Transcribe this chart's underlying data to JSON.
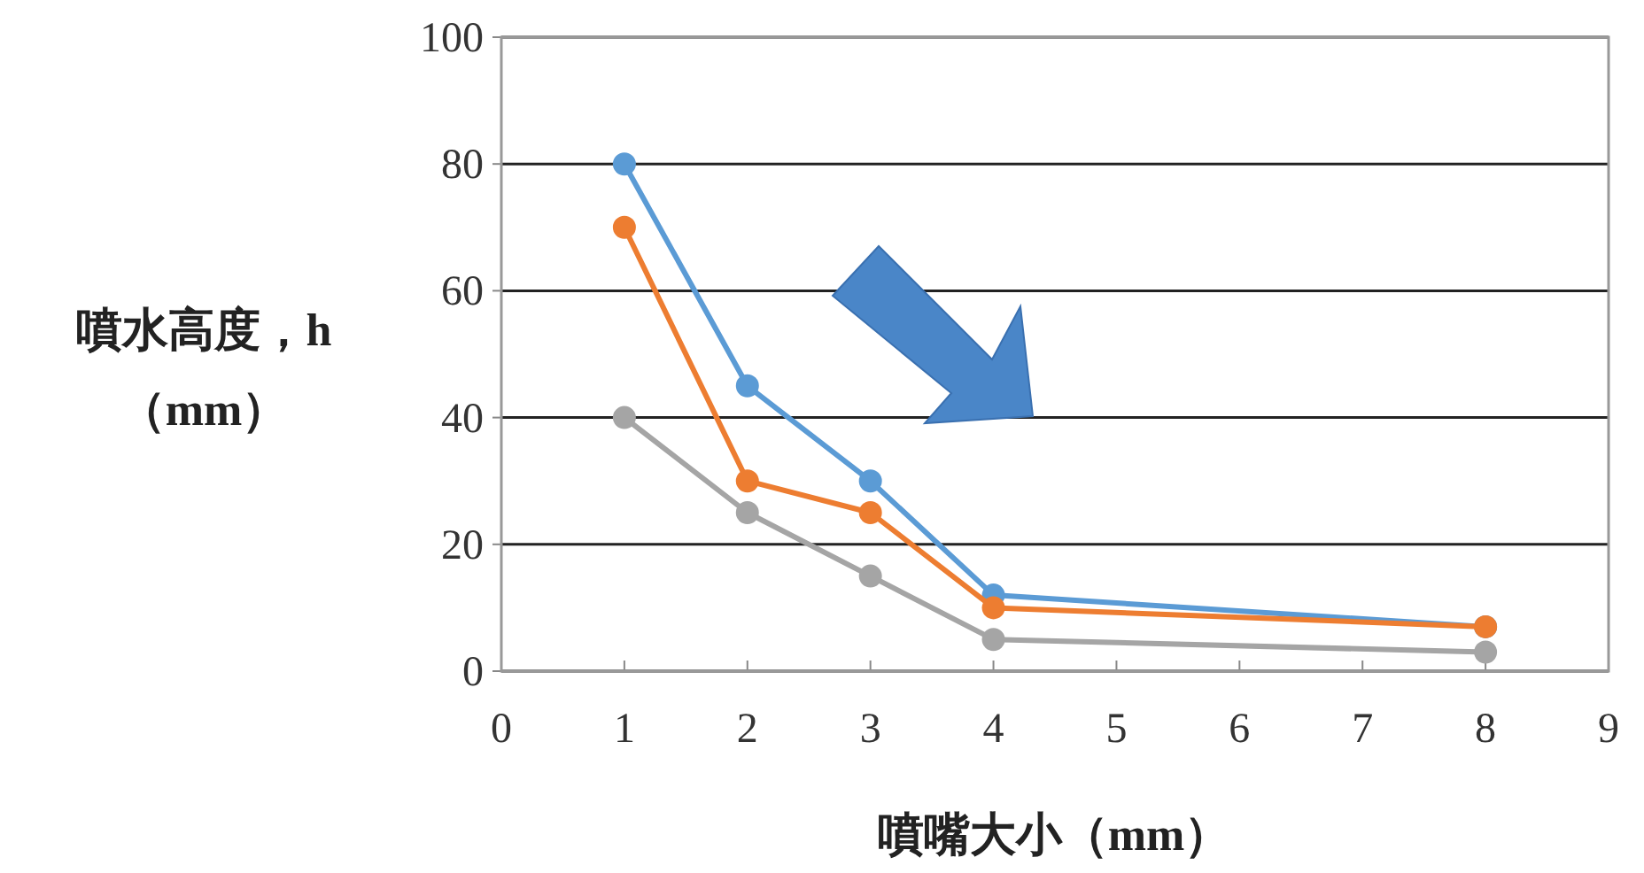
{
  "chart_data": {
    "type": "line",
    "xlabel": "噴嘴大小（mm）",
    "ylabel": "噴水高度，h\n（mm）",
    "x": [
      1,
      2,
      3,
      4,
      8
    ],
    "xlim": [
      0,
      9
    ],
    "xticks": [
      0,
      1,
      2,
      3,
      4,
      5,
      6,
      7,
      8,
      9
    ],
    "ylim": [
      0,
      100
    ],
    "yticks": [
      0,
      20,
      40,
      60,
      80,
      100
    ],
    "grid": "y",
    "marker": "circle",
    "series": [
      {
        "color": "#5b9bd5",
        "values": [
          80,
          45,
          30,
          12,
          7
        ]
      },
      {
        "color": "#ed7d31",
        "values": [
          70,
          30,
          25,
          10,
          7
        ]
      },
      {
        "color": "#a5a5a5",
        "values": [
          40,
          25,
          15,
          5,
          3
        ]
      }
    ]
  }
}
